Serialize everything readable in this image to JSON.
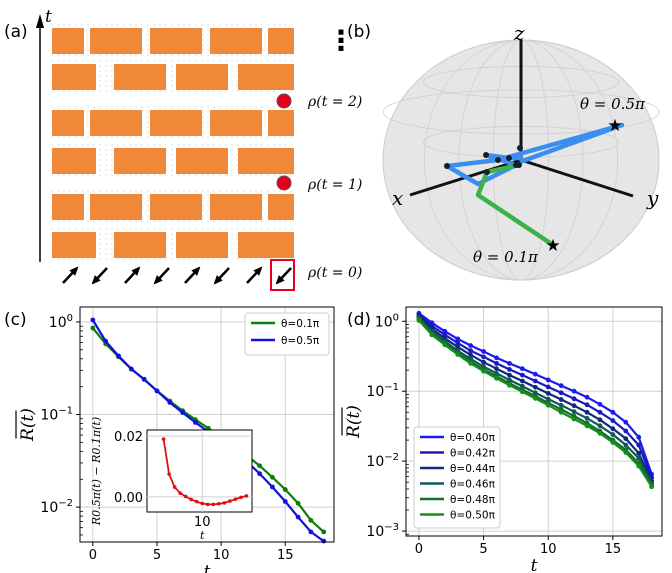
{
  "panels": {
    "a": {
      "label": "(a)",
      "axis_label": "t",
      "rho_labels": [
        "ρ(t = 2)",
        "ρ(t = 1)",
        "ρ(t = 0)"
      ],
      "ellipsis": "⋮",
      "brick_color": "#F0883A",
      "marker_color": "#E8001A",
      "highlight_color": "#E8001A"
    },
    "b": {
      "label": "(b)",
      "axes": {
        "z": "z",
        "x": "x",
        "y": "y"
      },
      "annotations": [
        "θ = 0.5π",
        "θ = 0.1π"
      ],
      "path_colors": {
        "theta_0.5pi": "#3A8EF0",
        "theta_0.1pi": "#3CB34A"
      }
    },
    "c": {
      "label": "(c)"
    },
    "d": {
      "label": "(d)"
    }
  },
  "chart_data": [
    {
      "panel": "c",
      "type": "line",
      "xlabel": "t",
      "ylabel": "R(t)",
      "yscale": "log",
      "xlim": [
        -1,
        18.8
      ],
      "ylim": [
        0.0042,
        1.45
      ],
      "xticks": [
        "0",
        "5",
        "10",
        "15"
      ],
      "yticks": [
        "10^0",
        "10^-1",
        "10^-2"
      ],
      "grid": true,
      "legend": "top-right",
      "x": [
        0,
        1,
        2,
        3,
        4,
        5,
        6,
        7,
        8,
        9,
        10,
        11,
        12,
        13,
        14,
        15,
        16,
        17,
        18
      ],
      "series": [
        {
          "name": "θ=0.1π",
          "color": "#0A7D0A",
          "values": [
            0.86,
            0.58,
            0.42,
            0.31,
            0.24,
            0.18,
            0.14,
            0.11,
            0.088,
            0.071,
            0.057,
            0.046,
            0.036,
            0.028,
            0.021,
            0.0155,
            0.011,
            0.0072,
            0.0054
          ]
        },
        {
          "name": "θ=0.5π",
          "color": "#1010E0",
          "values": [
            1.05,
            0.62,
            0.43,
            0.31,
            0.24,
            0.18,
            0.135,
            0.105,
            0.082,
            0.065,
            0.051,
            0.04,
            0.031,
            0.023,
            0.0165,
            0.0115,
            0.0078,
            0.0054,
            0.0043
          ]
        }
      ],
      "inset": {
        "type": "line",
        "xlabel": "t",
        "ylabel": "R0.5π(t) − R0.1π(t)",
        "xlim": [
          0,
          19
        ],
        "ylim": [
          -0.005,
          0.022
        ],
        "xticks": [
          "10"
        ],
        "yticks": [
          "0.00",
          "0.02"
        ],
        "x": [
          3,
          4,
          5,
          6,
          7,
          8,
          9,
          10,
          11,
          12,
          13,
          14,
          15,
          16,
          17,
          18
        ],
        "values": [
          0.019,
          0.0075,
          0.0032,
          0.0012,
          0.0001,
          -0.0009,
          -0.0016,
          -0.0022,
          -0.0025,
          -0.0025,
          -0.0023,
          -0.002,
          -0.0014,
          -0.0008,
          -0.0002,
          0.0003
        ],
        "color": "#E01010"
      }
    },
    {
      "panel": "d",
      "type": "line",
      "xlabel": "t",
      "ylabel": "R(t)",
      "yscale": "log",
      "xlim": [
        -1,
        18.8
      ],
      "ylim": [
        0.00085,
        1.6
      ],
      "xticks": [
        "0",
        "5",
        "10",
        "15"
      ],
      "yticks": [
        "10^0",
        "10^-1",
        "10^-2",
        "10^-3"
      ],
      "grid": true,
      "legend": "bottom-left",
      "x": [
        0,
        1,
        2,
        3,
        4,
        5,
        6,
        7,
        8,
        9,
        10,
        11,
        12,
        13,
        14,
        15,
        16,
        17,
        18
      ],
      "series": [
        {
          "name": "θ=0.40π",
          "color": "#1A1AF5",
          "values": [
            1.3,
            0.95,
            0.72,
            0.56,
            0.45,
            0.37,
            0.3,
            0.25,
            0.21,
            0.175,
            0.145,
            0.12,
            0.1,
            0.082,
            0.065,
            0.05,
            0.036,
            0.022,
            0.0065
          ]
        },
        {
          "name": "θ=0.42π",
          "color": "#1A1ABE",
          "values": [
            1.24,
            0.86,
            0.64,
            0.49,
            0.38,
            0.31,
            0.25,
            0.205,
            0.17,
            0.14,
            0.115,
            0.095,
            0.078,
            0.064,
            0.05,
            0.038,
            0.027,
            0.017,
            0.0058
          ]
        },
        {
          "name": "θ=0.44π",
          "color": "#102A7A",
          "values": [
            1.18,
            0.78,
            0.57,
            0.43,
            0.33,
            0.26,
            0.21,
            0.17,
            0.14,
            0.114,
            0.093,
            0.076,
            0.062,
            0.05,
            0.039,
            0.029,
            0.021,
            0.013,
            0.0052
          ]
        },
        {
          "name": "θ=0.46π",
          "color": "#10585A",
          "values": [
            1.12,
            0.72,
            0.52,
            0.38,
            0.29,
            0.225,
            0.18,
            0.145,
            0.118,
            0.095,
            0.077,
            0.063,
            0.051,
            0.041,
            0.032,
            0.024,
            0.017,
            0.011,
            0.0048
          ]
        },
        {
          "name": "θ=0.48π",
          "color": "#1A6A32",
          "values": [
            1.07,
            0.67,
            0.48,
            0.35,
            0.265,
            0.205,
            0.163,
            0.13,
            0.105,
            0.085,
            0.068,
            0.055,
            0.044,
            0.035,
            0.027,
            0.02,
            0.0145,
            0.0093,
            0.0045
          ]
        },
        {
          "name": "θ=0.50π",
          "color": "#109018",
          "values": [
            1.03,
            0.64,
            0.46,
            0.335,
            0.25,
            0.193,
            0.153,
            0.122,
            0.098,
            0.079,
            0.063,
            0.05,
            0.04,
            0.032,
            0.025,
            0.0185,
            0.0133,
            0.0085,
            0.0043
          ]
        }
      ]
    }
  ]
}
